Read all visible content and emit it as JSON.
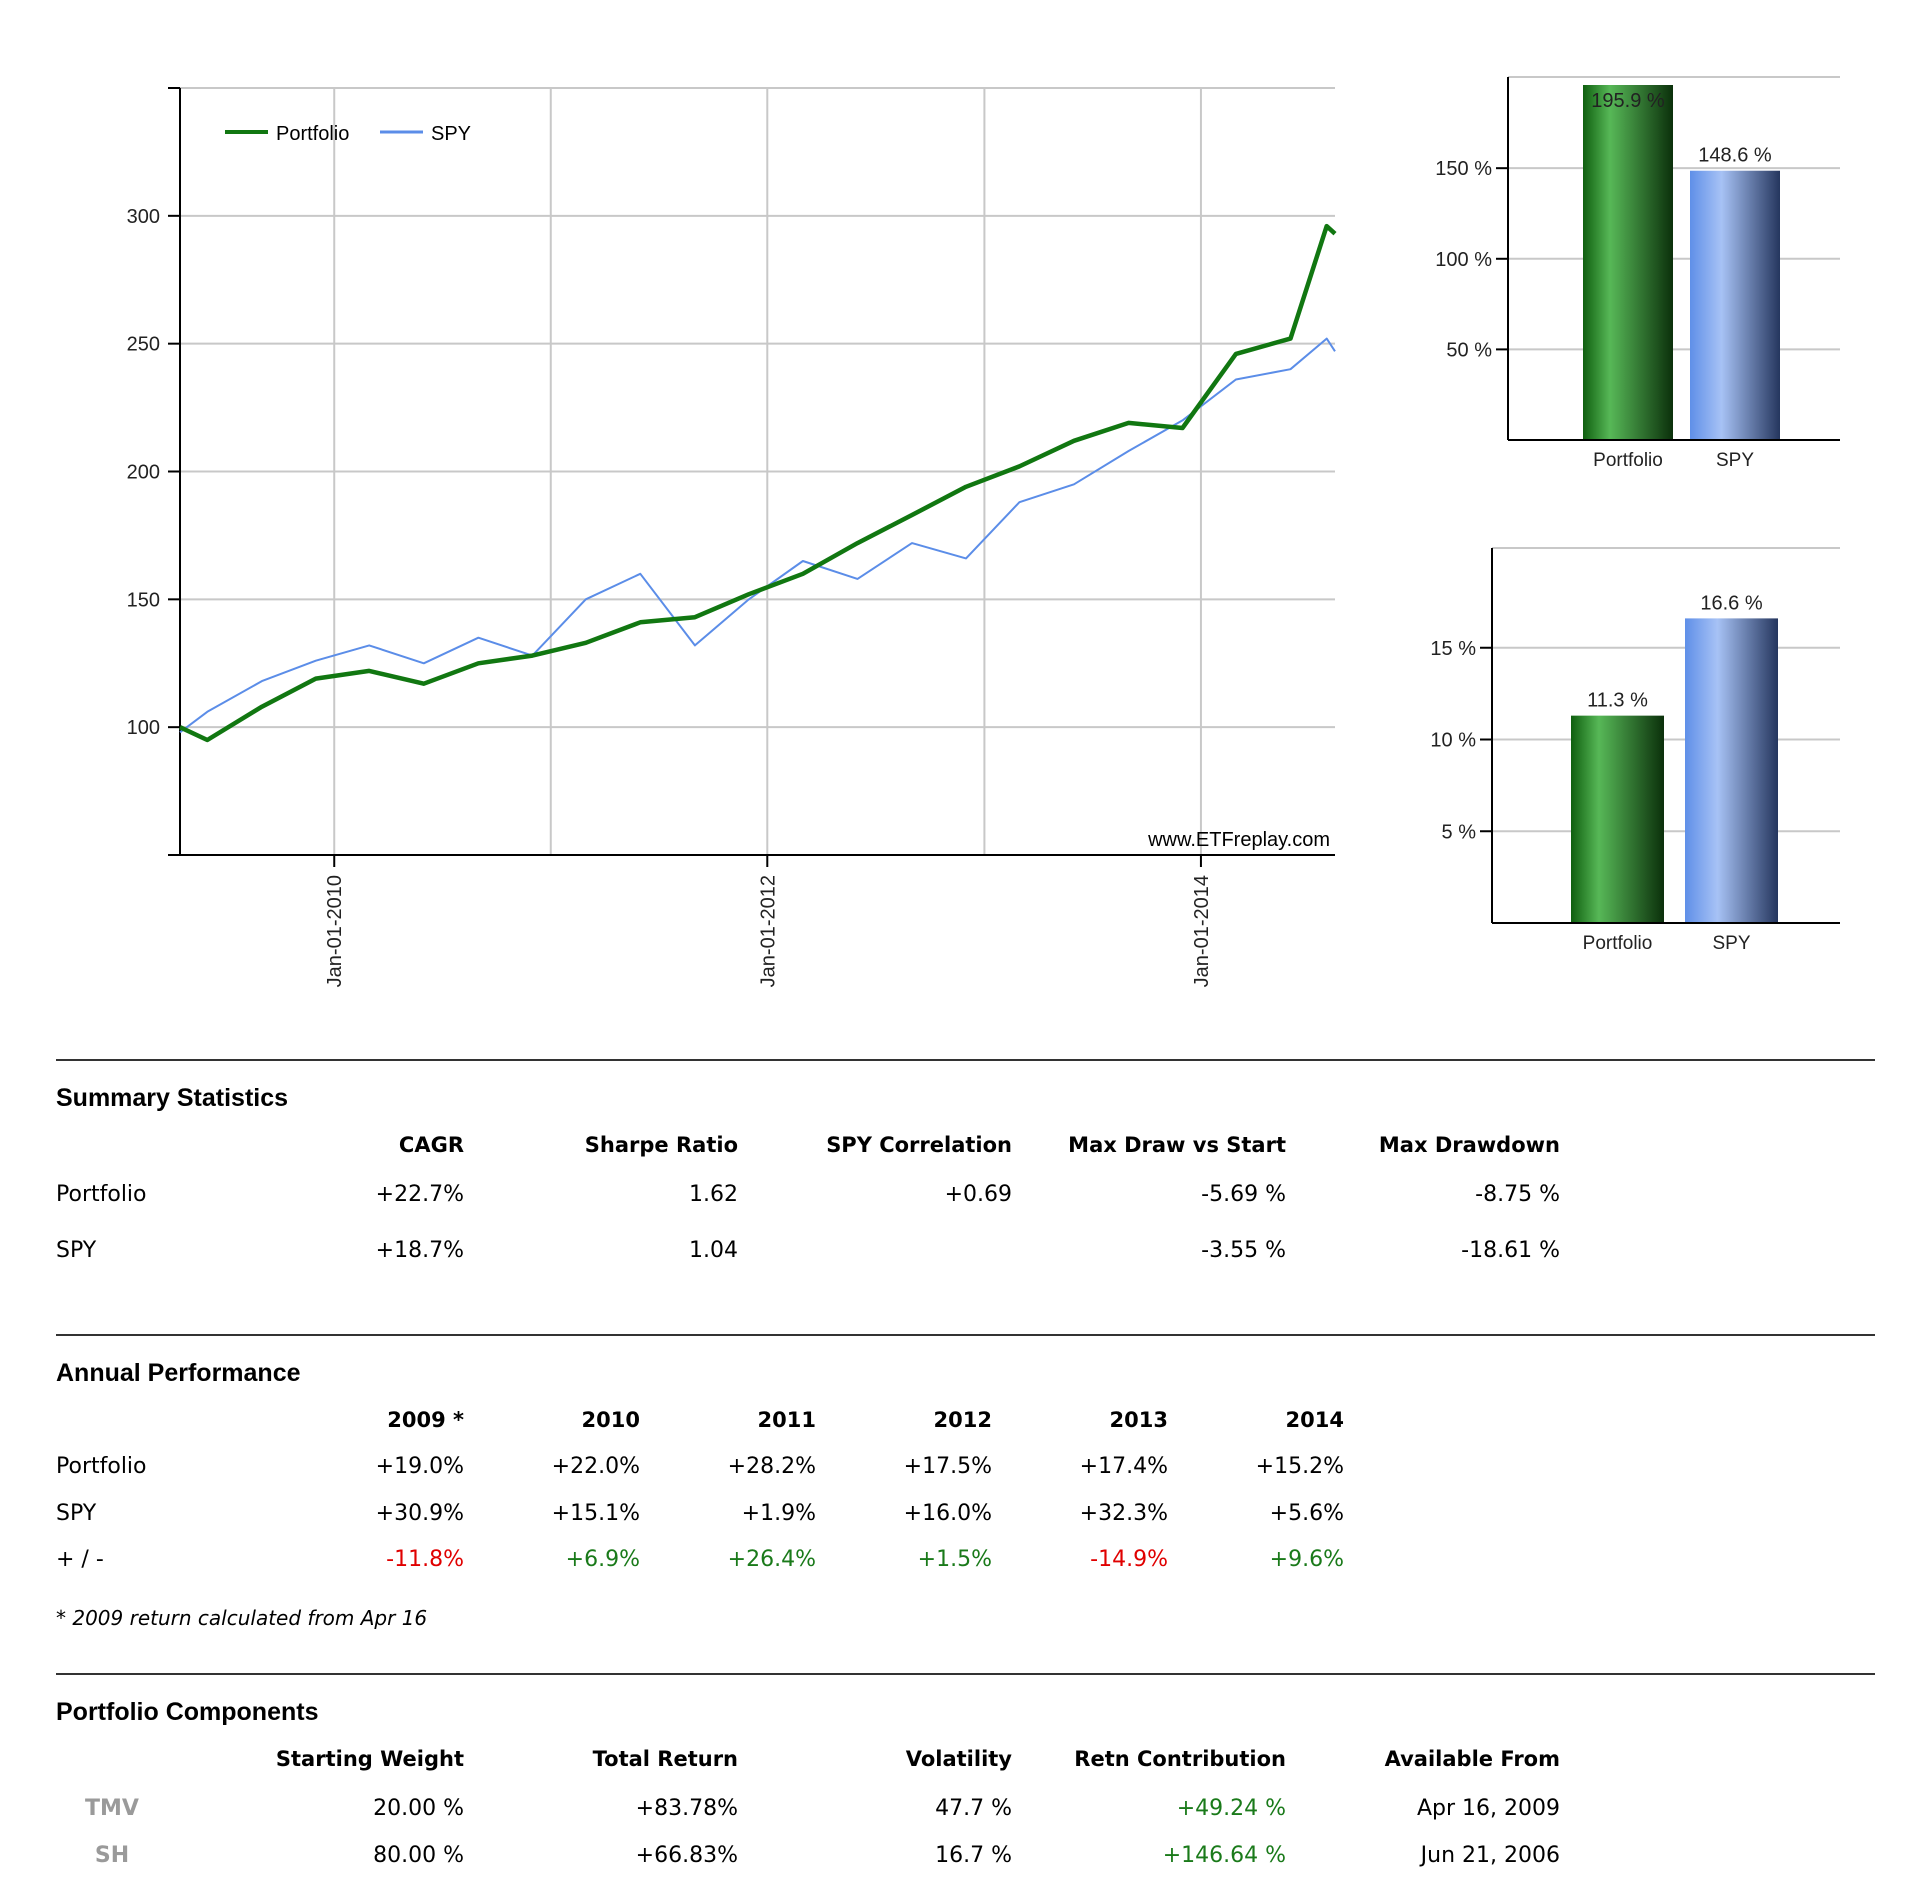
{
  "chart_data": [
    {
      "type": "line",
      "legend": [
        "Portfolio",
        "SPY"
      ],
      "legend_placement": "top-left",
      "grid": true,
      "watermark": "www.ETFreplay.com",
      "x_ticks": [
        "Jan-01-2010",
        "Jan-01-2012",
        "Jan-01-2014"
      ],
      "y_ticks": [
        "100",
        "150",
        "200",
        "250",
        "300"
      ],
      "ylim": [
        50,
        350
      ],
      "xlim": [
        "2009-04-16",
        "2014-08-15"
      ],
      "series": [
        {
          "name": "Portfolio",
          "color": "#117711",
          "points": [
            [
              "2009-04-16",
              100
            ],
            [
              "2009-06-01",
              95
            ],
            [
              "2009-09-01",
              108
            ],
            [
              "2009-12-01",
              119
            ],
            [
              "2010-03-01",
              122
            ],
            [
              "2010-06-01",
              117
            ],
            [
              "2010-09-01",
              125
            ],
            [
              "2010-12-01",
              128
            ],
            [
              "2011-03-01",
              133
            ],
            [
              "2011-06-01",
              141
            ],
            [
              "2011-09-01",
              143
            ],
            [
              "2011-12-01",
              152
            ],
            [
              "2012-03-01",
              160
            ],
            [
              "2012-06-01",
              172
            ],
            [
              "2012-09-01",
              183
            ],
            [
              "2012-12-01",
              194
            ],
            [
              "2013-03-01",
              202
            ],
            [
              "2013-06-01",
              212
            ],
            [
              "2013-09-01",
              219
            ],
            [
              "2013-12-01",
              217
            ],
            [
              "2014-03-01",
              246
            ],
            [
              "2014-06-01",
              252
            ],
            [
              "2014-08-01",
              296
            ],
            [
              "2014-08-15",
              293
            ]
          ]
        },
        {
          "name": "SPY",
          "color": "#5b8de8",
          "points": [
            [
              "2009-04-16",
              98
            ],
            [
              "2009-06-01",
              106
            ],
            [
              "2009-09-01",
              118
            ],
            [
              "2009-12-01",
              126
            ],
            [
              "2010-03-01",
              132
            ],
            [
              "2010-06-01",
              125
            ],
            [
              "2010-09-01",
              135
            ],
            [
              "2010-12-01",
              128
            ],
            [
              "2011-03-01",
              150
            ],
            [
              "2011-06-01",
              160
            ],
            [
              "2011-09-01",
              132
            ],
            [
              "2011-12-01",
              150
            ],
            [
              "2012-03-01",
              165
            ],
            [
              "2012-06-01",
              158
            ],
            [
              "2012-09-01",
              172
            ],
            [
              "2012-12-01",
              166
            ],
            [
              "2013-03-01",
              188
            ],
            [
              "2013-06-01",
              195
            ],
            [
              "2013-09-01",
              208
            ],
            [
              "2013-12-01",
              220
            ],
            [
              "2014-03-01",
              236
            ],
            [
              "2014-06-01",
              240
            ],
            [
              "2014-08-01",
              252
            ],
            [
              "2014-08-15",
              247
            ]
          ]
        }
      ]
    },
    {
      "type": "bar",
      "categories": [
        "Portfolio",
        "SPY"
      ],
      "values": [
        195.9,
        148.6
      ],
      "value_labels": [
        "195.9 %",
        "148.6 %"
      ],
      "y_ticks": [
        "50 %",
        "100 %",
        "150 %"
      ],
      "ylim": [
        0,
        195.9
      ],
      "colors": [
        "#1e7e1e",
        "#6f96e8"
      ]
    },
    {
      "type": "bar",
      "categories": [
        "Portfolio",
        "SPY"
      ],
      "values": [
        11.3,
        16.6
      ],
      "value_labels": [
        "11.3 %",
        "16.6 %"
      ],
      "y_ticks": [
        "5 %",
        "10 %",
        "15 %"
      ],
      "ylim": [
        0,
        20
      ],
      "colors": [
        "#1e7e1e",
        "#6f96e8"
      ]
    }
  ],
  "summary": {
    "title": "Summary Statistics",
    "headers": [
      "CAGR",
      "Sharpe Ratio",
      "SPY Correlation",
      "Max Draw vs Start",
      "Max Drawdown"
    ],
    "rows": [
      {
        "label": "Portfolio",
        "values": [
          "+22.7%",
          "1.62",
          "+0.69",
          "-5.69 %",
          "-8.75 %"
        ]
      },
      {
        "label": "SPY",
        "values": [
          "+18.7%",
          "1.04",
          "",
          "-3.55 %",
          "-18.61 %"
        ]
      }
    ]
  },
  "annual": {
    "title": "Annual Performance",
    "headers": [
      "2009 *",
      "2010",
      "2011",
      "2012",
      "2013",
      "2014"
    ],
    "rows": [
      {
        "label": "Portfolio",
        "values": [
          "+19.0%",
          "+22.0%",
          "+28.2%",
          "+17.5%",
          "+17.4%",
          "+15.2%"
        ]
      },
      {
        "label": "SPY",
        "values": [
          "+30.9%",
          "+15.1%",
          "+1.9%",
          "+16.0%",
          "+32.3%",
          "+5.6%"
        ]
      },
      {
        "label": "+ / -",
        "values": [
          "-11.8%",
          "+6.9%",
          "+26.4%",
          "+1.5%",
          "-14.9%",
          "+9.6%"
        ]
      }
    ],
    "note": "* 2009 return calculated from Apr 16",
    "colors": {
      "positive": "#1a7a1a",
      "negative": "#e00000"
    }
  },
  "components": {
    "title": "Portfolio Components",
    "headers": [
      "Starting Weight",
      "Total Return",
      "Volatility",
      "Retn Contribution",
      "Available From"
    ],
    "rows": [
      {
        "ticker": "TMV",
        "values": [
          "20.00 %",
          "+83.78%",
          "47.7 %",
          "+49.24 %",
          "Apr 16, 2009"
        ]
      },
      {
        "ticker": "SH",
        "values": [
          "80.00 %",
          "+66.83%",
          "16.7 %",
          "+146.64 %",
          "Jun 21, 2006"
        ]
      }
    ]
  }
}
